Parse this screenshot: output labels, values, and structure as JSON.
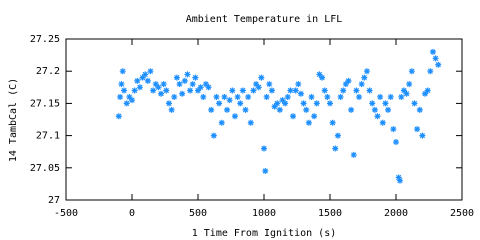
{
  "chart_data": {
    "type": "scatter",
    "title": "Ambient Temperature in LFL",
    "x_label": "1 Time From Ignition (s)",
    "y_label": "14 TambCal (C)",
    "color": "#1e8fff",
    "xlim": [
      -500,
      2500
    ],
    "xticks": [
      -500,
      0,
      500,
      1000,
      1500,
      2000,
      2500
    ],
    "ylim": [
      27,
      27.25
    ],
    "yticks": [
      27,
      27.05,
      27.1,
      27.15,
      27.2,
      27.25
    ],
    "x": [
      -100,
      -90,
      -80,
      -70,
      -60,
      -40,
      -20,
      0,
      20,
      40,
      60,
      80,
      100,
      120,
      140,
      160,
      180,
      200,
      220,
      240,
      260,
      280,
      300,
      320,
      340,
      360,
      380,
      400,
      420,
      440,
      460,
      480,
      500,
      520,
      540,
      560,
      580,
      600,
      620,
      640,
      660,
      680,
      700,
      720,
      740,
      760,
      780,
      800,
      820,
      840,
      860,
      880,
      900,
      920,
      940,
      960,
      980,
      1000,
      1010,
      1020,
      1040,
      1060,
      1080,
      1100,
      1120,
      1140,
      1160,
      1180,
      1200,
      1220,
      1240,
      1260,
      1280,
      1300,
      1320,
      1340,
      1360,
      1380,
      1400,
      1420,
      1440,
      1460,
      1480,
      1500,
      1520,
      1540,
      1560,
      1580,
      1600,
      1620,
      1640,
      1660,
      1680,
      1700,
      1720,
      1740,
      1760,
      1780,
      1800,
      1820,
      1840,
      1860,
      1880,
      1900,
      1920,
      1940,
      1960,
      1980,
      2000,
      2020,
      2030,
      2040,
      2060,
      2080,
      2100,
      2120,
      2140,
      2160,
      2180,
      2200,
      2220,
      2240,
      2260,
      2280,
      2300,
      2320
    ],
    "values": [
      27.13,
      27.16,
      27.18,
      27.2,
      27.17,
      27.15,
      27.16,
      27.155,
      27.17,
      27.185,
      27.175,
      27.19,
      27.195,
      27.185,
      27.2,
      27.17,
      27.18,
      27.175,
      27.165,
      27.18,
      27.17,
      27.15,
      27.14,
      27.16,
      27.19,
      27.18,
      27.165,
      27.185,
      27.195,
      27.17,
      27.18,
      27.19,
      27.17,
      27.175,
      27.16,
      27.18,
      27.175,
      27.14,
      27.1,
      27.16,
      27.15,
      27.12,
      27.16,
      27.14,
      27.155,
      27.17,
      27.13,
      27.16,
      27.15,
      27.17,
      27.14,
      27.16,
      27.12,
      27.17,
      27.18,
      27.175,
      27.19,
      27.08,
      27.045,
      27.16,
      27.18,
      27.17,
      27.145,
      27.15,
      27.14,
      27.155,
      27.15,
      27.16,
      27.17,
      27.13,
      27.17,
      27.18,
      27.165,
      27.15,
      27.14,
      27.12,
      27.16,
      27.13,
      27.15,
      27.195,
      27.19,
      27.17,
      27.16,
      27.15,
      27.12,
      27.08,
      27.1,
      27.16,
      27.17,
      27.18,
      27.185,
      27.14,
      27.07,
      27.17,
      27.16,
      27.18,
      27.19,
      27.2,
      27.17,
      27.15,
      27.14,
      27.13,
      27.16,
      27.12,
      27.15,
      27.14,
      27.16,
      27.11,
      27.09,
      27.035,
      27.03,
      27.16,
      27.17,
      27.165,
      27.18,
      27.2,
      27.15,
      27.11,
      27.14,
      27.1,
      27.165,
      27.17,
      27.2,
      27.23,
      27.22,
      27.21
    ]
  }
}
